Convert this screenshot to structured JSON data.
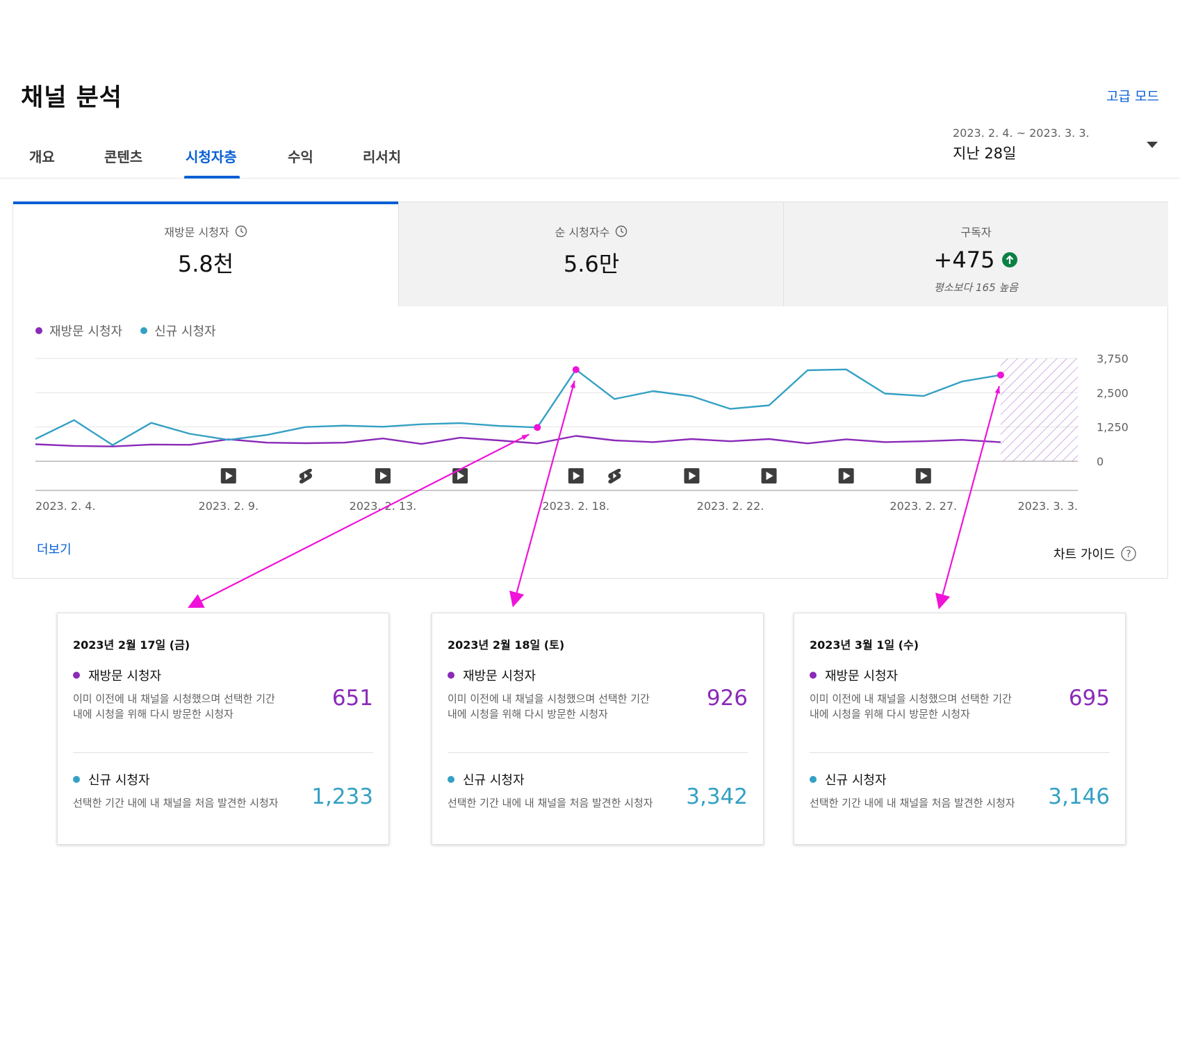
{
  "header": {
    "title": "채널 분석",
    "advanced_mode": "고급 모드"
  },
  "tabs": [
    {
      "label": "개요",
      "active": false
    },
    {
      "label": "콘텐츠",
      "active": false
    },
    {
      "label": "시청자층",
      "active": true
    },
    {
      "label": "수익",
      "active": false
    },
    {
      "label": "리서치",
      "active": false
    }
  ],
  "date_picker": {
    "range": "2023. 2. 4. ~ 2023. 3. 3.",
    "period": "지난 28일"
  },
  "metrics": [
    {
      "label": "재방문 시청자",
      "value": "5.8천",
      "icon": "clock-icon",
      "active": true
    },
    {
      "label": "순 시청자수",
      "value": "5.6만",
      "icon": "clock-icon",
      "active": false
    },
    {
      "label": "구독자",
      "value": "+475",
      "icon": "arrow-up-circle-icon",
      "note": "평소보다 165 높음",
      "active": false
    }
  ],
  "legend": [
    {
      "name": "재방문 시청자",
      "color": "#8a2ab8"
    },
    {
      "name": "신규 시청자",
      "color": "#34a0c4"
    }
  ],
  "more_link": "더보기",
  "chart_guide": "차트 가이드",
  "chart_data": {
    "type": "line",
    "x": [
      "2023-02-04",
      "2023-02-05",
      "2023-02-06",
      "2023-02-07",
      "2023-02-08",
      "2023-02-09",
      "2023-02-10",
      "2023-02-11",
      "2023-02-12",
      "2023-02-13",
      "2023-02-14",
      "2023-02-15",
      "2023-02-16",
      "2023-02-17",
      "2023-02-18",
      "2023-02-19",
      "2023-02-20",
      "2023-02-21",
      "2023-02-22",
      "2023-02-23",
      "2023-02-24",
      "2023-02-25",
      "2023-02-26",
      "2023-02-27",
      "2023-02-28",
      "2023-03-01"
    ],
    "x_tick_labels": [
      "2023. 2. 4.",
      "2023. 2. 9.",
      "2023. 2. 13.",
      "2023. 2. 18.",
      "2023. 2. 22.",
      "2023. 2. 27.",
      "2023. 3. 3."
    ],
    "x_tick_dates": [
      "2023-02-04",
      "2023-02-09",
      "2023-02-13",
      "2023-02-18",
      "2023-02-22",
      "2023-02-27",
      "2023-03-03"
    ],
    "y_ticks": [
      "3,750",
      "2,500",
      "1,250",
      "0"
    ],
    "ylim": [
      0,
      3750
    ],
    "y_axis_position": "right",
    "grid": true,
    "series": [
      {
        "name": "재방문 시청자",
        "color": "#8a2ab8",
        "values": [
          620,
          560,
          540,
          610,
          600,
          800,
          680,
          660,
          680,
          830,
          630,
          860,
          760,
          651,
          926,
          760,
          700,
          810,
          730,
          810,
          650,
          800,
          700,
          730,
          780,
          695
        ]
      },
      {
        "name": "신규 시청자",
        "color": "#34a0c4",
        "values": [
          810,
          1500,
          590,
          1400,
          1000,
          780,
          960,
          1250,
          1300,
          1260,
          1350,
          1390,
          1290,
          1233,
          3342,
          2270,
          2560,
          2370,
          1910,
          2040,
          3320,
          3350,
          2470,
          2380,
          2910,
          3146
        ]
      }
    ],
    "forecast_region": {
      "from": "2023-03-01",
      "to": "2023-03-03",
      "pattern": "hatched"
    },
    "highlighted_points": [
      "2023-02-17",
      "2023-02-18",
      "2023-03-01"
    ],
    "upload_markers": [
      {
        "date": "2023-02-09",
        "kind": "video"
      },
      {
        "date": "2023-02-11",
        "kind": "shorts"
      },
      {
        "date": "2023-02-13",
        "kind": "video"
      },
      {
        "date": "2023-02-15",
        "kind": "video"
      },
      {
        "date": "2023-02-18",
        "kind": "video"
      },
      {
        "date": "2023-02-19",
        "kind": "shorts"
      },
      {
        "date": "2023-02-21",
        "kind": "video"
      },
      {
        "date": "2023-02-23",
        "kind": "video"
      },
      {
        "date": "2023-02-25",
        "kind": "video"
      },
      {
        "date": "2023-02-27",
        "kind": "video"
      }
    ]
  },
  "tooltips": [
    {
      "date": "2023년 2월 17일 (금)",
      "returning": {
        "label": "재방문 시청자",
        "desc": "이미 이전에 내 채널을 시청했으며 선택한 기간 내에 시청을 위해 다시 방문한 시청자",
        "value": "651"
      },
      "new": {
        "label": "신규 시청자",
        "desc": "선택한 기간 내에 내 채널을 처음 발견한 시청자",
        "value": "1,233"
      }
    },
    {
      "date": "2023년 2월 18일 (토)",
      "returning": {
        "label": "재방문 시청자",
        "desc": "이미 이전에 내 채널을 시청했으며 선택한 기간 내에 시청을 위해 다시 방문한 시청자",
        "value": "926"
      },
      "new": {
        "label": "신규 시청자",
        "desc": "선택한 기간 내에 내 채널을 처음 발견한 시청자",
        "value": "3,342"
      }
    },
    {
      "date": "2023년 3월 1일 (수)",
      "returning": {
        "label": "재방문 시청자",
        "desc": "이미 이전에 내 채널을 시청했으며 선택한 기간 내에 시청을 위해 다시 방문한 시청자",
        "value": "695"
      },
      "new": {
        "label": "신규 시청자",
        "desc": "선택한 기간 내에 내 채널을 처음 발견한 시청자",
        "value": "3,146"
      }
    }
  ],
  "colors": {
    "accent": "#065fd4",
    "returning": "#8a2ab8",
    "new": "#34a0c4",
    "annotation": "#f012d8",
    "positive": "#0b8043"
  }
}
